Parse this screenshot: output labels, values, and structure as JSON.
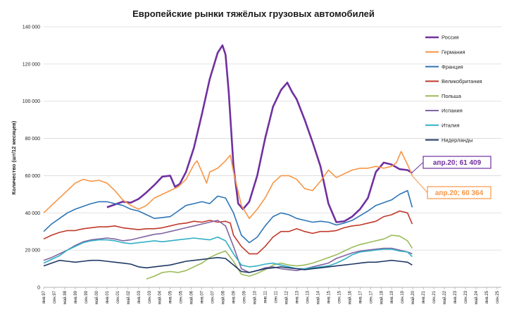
{
  "chart_data": {
    "type": "line",
    "title": "Европейские рынки тяжёлых грузовых автомобилей",
    "ylabel": "Количество  (шт/12 месяцев)",
    "ylim": [
      0,
      140000
    ],
    "y_ticks": [
      "0",
      "20 000",
      "40 000",
      "60 000",
      "80 000",
      "100 000",
      "120 000",
      "140 000"
    ],
    "x_ticks": [
      "янв.97",
      "сен.97",
      "май.98",
      "янв.99",
      "сен.99",
      "май.00",
      "янв.01",
      "сен.01",
      "май.02",
      "янв.03",
      "сен.03",
      "май.04",
      "янв.05",
      "сен.05",
      "май.06",
      "янв.07",
      "сен.07",
      "май.08",
      "янв.09",
      "сен.09",
      "май.10",
      "янв.11",
      "сен.11",
      "май.12",
      "янв.13",
      "сен.13",
      "май.14",
      "янв.15",
      "сен.15",
      "май.16",
      "янв.17",
      "сен.17",
      "май.18",
      "янв.19",
      "сен.19",
      "май.20",
      "янв.21",
      "сен.21",
      "май.22",
      "янв.23",
      "сен.23",
      "май.24",
      "янв.25",
      "сен.25"
    ],
    "legend_position": "right",
    "grid": "horizontal",
    "series": [
      {
        "name": "Россия",
        "color": "#7030a0",
        "x": [
          2001.0,
          2001.5,
          2002.0,
          2002.5,
          2003.0,
          2003.5,
          2004.0,
          2004.5,
          2005.0,
          2005.3,
          2005.6,
          2006.0,
          2006.5,
          2007.0,
          2007.5,
          2008.0,
          2008.3,
          2008.5,
          2008.7,
          2009.0,
          2009.3,
          2009.6,
          2010.0,
          2010.5,
          2011.0,
          2011.5,
          2012.0,
          2012.4,
          2012.7,
          2013.0,
          2013.5,
          2014.0,
          2014.5,
          2015.0,
          2015.5,
          2016.0,
          2016.5,
          2017.0,
          2017.5,
          2018.0,
          2018.5,
          2019.0,
          2019.5,
          2020.0,
          2020.3
        ],
        "y": [
          43000,
          44500,
          46000,
          45500,
          47500,
          51000,
          55000,
          59500,
          60000,
          54000,
          55500,
          62000,
          75000,
          93000,
          112000,
          126000,
          130000,
          125000,
          105000,
          65000,
          45000,
          42000,
          46000,
          60000,
          80000,
          97000,
          106000,
          110000,
          105000,
          101000,
          90000,
          78000,
          65000,
          45000,
          35000,
          35500,
          38000,
          42000,
          48000,
          62000,
          67000,
          66000,
          63500,
          63000,
          61409
        ]
      },
      {
        "name": "Германия",
        "color": "#f79646",
        "x": [
          1997.0,
          1997.5,
          1998.0,
          1998.5,
          1999.0,
          1999.5,
          2000.0,
          2000.5,
          2001.0,
          2001.5,
          2002.0,
          2002.5,
          2003.0,
          2003.5,
          2004.0,
          2004.5,
          2005.0,
          2005.5,
          2006.0,
          2006.5,
          2006.7,
          2007.0,
          2007.3,
          2007.5,
          2008.0,
          2008.5,
          2008.8,
          2009.0,
          2009.5,
          2010.0,
          2010.5,
          2011.0,
          2011.5,
          2012.0,
          2012.5,
          2013.0,
          2013.5,
          2014.0,
          2014.5,
          2015.0,
          2015.5,
          2016.0,
          2016.5,
          2017.0,
          2017.5,
          2018.0,
          2018.5,
          2019.0,
          2019.3,
          2019.6,
          2020.0,
          2020.3
        ],
        "y": [
          40000,
          44000,
          48000,
          52000,
          56000,
          58000,
          57000,
          57500,
          56000,
          52000,
          47000,
          44000,
          42000,
          44000,
          48000,
          50000,
          52000,
          54000,
          58000,
          66000,
          68000,
          62000,
          56000,
          62000,
          64000,
          68000,
          71000,
          62000,
          44000,
          37000,
          42000,
          48000,
          56000,
          60000,
          60000,
          58000,
          53000,
          52000,
          57000,
          63000,
          59000,
          61000,
          63000,
          64000,
          64000,
          65000,
          64000,
          65000,
          67000,
          73000,
          66000,
          60364
        ]
      },
      {
        "name": "Франция",
        "color": "#2e75b6",
        "x": [
          1997.0,
          1997.5,
          1998.0,
          1998.5,
          1999.0,
          1999.5,
          2000.0,
          2000.5,
          2001.0,
          2001.5,
          2002.0,
          2002.5,
          2003.0,
          2003.5,
          2004.0,
          2004.5,
          2005.0,
          2005.5,
          2006.0,
          2006.5,
          2007.0,
          2007.5,
          2008.0,
          2008.5,
          2009.0,
          2009.5,
          2010.0,
          2010.5,
          2011.0,
          2011.5,
          2012.0,
          2012.5,
          2013.0,
          2013.5,
          2014.0,
          2014.5,
          2015.0,
          2015.5,
          2016.0,
          2016.5,
          2017.0,
          2017.5,
          2018.0,
          2018.5,
          2019.0,
          2019.5,
          2020.0,
          2020.3
        ],
        "y": [
          30000,
          34000,
          37000,
          40000,
          42000,
          43500,
          45000,
          46000,
          46000,
          45000,
          44000,
          42000,
          41000,
          39000,
          37000,
          37500,
          38000,
          41000,
          44000,
          45000,
          46000,
          45000,
          49000,
          48000,
          40000,
          28000,
          24000,
          27000,
          33000,
          38000,
          40000,
          39000,
          37000,
          36000,
          35000,
          35500,
          35000,
          33500,
          34500,
          36000,
          38500,
          41000,
          44000,
          45500,
          47000,
          50000,
          52000,
          43000
        ]
      },
      {
        "name": "Великобритания",
        "color": "#c0392b",
        "x": [
          1997.0,
          1997.5,
          1998.0,
          1998.5,
          1999.0,
          1999.5,
          2000.0,
          2000.5,
          2001.0,
          2001.5,
          2002.0,
          2002.5,
          2003.0,
          2003.5,
          2004.0,
          2004.5,
          2005.0,
          2005.5,
          2006.0,
          2006.5,
          2007.0,
          2007.5,
          2008.0,
          2008.5,
          2008.8,
          2009.0,
          2009.5,
          2010.0,
          2010.5,
          2011.0,
          2011.5,
          2012.0,
          2012.5,
          2013.0,
          2013.5,
          2014.0,
          2014.5,
          2015.0,
          2015.5,
          2016.0,
          2016.5,
          2017.0,
          2017.5,
          2018.0,
          2018.5,
          2019.0,
          2019.5,
          2020.0,
          2020.3
        ],
        "y": [
          26000,
          28000,
          29500,
          30500,
          30500,
          31500,
          32000,
          32500,
          32500,
          33000,
          32000,
          31500,
          31000,
          31500,
          31500,
          32000,
          33000,
          34000,
          34500,
          35500,
          35000,
          36000,
          35000,
          35500,
          34500,
          28000,
          22000,
          18000,
          18000,
          22000,
          27000,
          30000,
          30000,
          31500,
          30000,
          29000,
          30000,
          30000,
          30500,
          32000,
          33000,
          33500,
          34500,
          35500,
          38000,
          39000,
          41000,
          40000,
          34000
        ]
      },
      {
        "name": "Польша",
        "color": "#9bbb59",
        "x": [
          2003.5,
          2004.0,
          2004.5,
          2005.0,
          2005.5,
          2006.0,
          2006.5,
          2007.0,
          2007.5,
          2008.0,
          2008.5,
          2009.0,
          2009.5,
          2010.0,
          2010.5,
          2011.0,
          2011.5,
          2012.0,
          2012.5,
          2013.0,
          2013.5,
          2014.0,
          2014.5,
          2015.0,
          2015.5,
          2016.0,
          2016.5,
          2017.0,
          2017.5,
          2018.0,
          2018.5,
          2019.0,
          2019.5,
          2020.0,
          2020.3
        ],
        "y": [
          4500,
          6000,
          8000,
          8500,
          8000,
          9000,
          11000,
          13000,
          16000,
          18000,
          19500,
          14000,
          7000,
          6000,
          7500,
          9500,
          12000,
          13000,
          12000,
          11500,
          12000,
          13000,
          14500,
          16000,
          17500,
          19500,
          21500,
          23000,
          24000,
          25000,
          26000,
          28000,
          27500,
          25000,
          21000
        ]
      },
      {
        "name": "Испания",
        "color": "#8064a2",
        "x": [
          1997.0,
          1997.5,
          1998.0,
          1998.5,
          1999.0,
          1999.5,
          2000.0,
          2000.5,
          2001.0,
          2001.5,
          2002.0,
          2002.5,
          2003.0,
          2003.5,
          2004.0,
          2004.5,
          2005.0,
          2005.5,
          2006.0,
          2006.5,
          2007.0,
          2007.5,
          2008.0,
          2008.5,
          2009.0,
          2009.5,
          2010.0,
          2010.5,
          2011.0,
          2011.5,
          2012.0,
          2012.5,
          2013.0,
          2013.5,
          2014.0,
          2014.5,
          2015.0,
          2015.5,
          2016.0,
          2016.5,
          2017.0,
          2017.5,
          2018.0,
          2018.5,
          2019.0,
          2019.5,
          2020.0,
          2020.3
        ],
        "y": [
          14500,
          16000,
          18000,
          20000,
          22500,
          24500,
          25500,
          26000,
          26500,
          26000,
          25000,
          25500,
          26500,
          27500,
          28500,
          29000,
          30000,
          31000,
          32000,
          33000,
          34000,
          35000,
          36000,
          33000,
          22000,
          10000,
          8000,
          9000,
          10500,
          11000,
          10000,
          9500,
          9000,
          10000,
          11000,
          12000,
          13000,
          15500,
          17000,
          18500,
          19500,
          20000,
          20500,
          21000,
          21000,
          20000,
          19000,
          18000
        ]
      },
      {
        "name": "Италия",
        "color": "#31b0c6",
        "x": [
          1997.0,
          1997.5,
          1998.0,
          1998.5,
          1999.0,
          1999.5,
          2000.0,
          2000.5,
          2001.0,
          2001.5,
          2002.0,
          2002.5,
          2003.0,
          2003.5,
          2004.0,
          2004.5,
          2005.0,
          2005.5,
          2006.0,
          2006.5,
          2007.0,
          2007.5,
          2008.0,
          2008.5,
          2009.0,
          2009.5,
          2010.0,
          2010.5,
          2011.0,
          2011.5,
          2012.0,
          2012.5,
          2013.0,
          2013.5,
          2014.0,
          2014.5,
          2015.0,
          2015.5,
          2016.0,
          2016.5,
          2017.0,
          2017.5,
          2018.0,
          2018.5,
          2019.0,
          2019.5,
          2020.0,
          2020.3
        ],
        "y": [
          13000,
          15000,
          17000,
          20000,
          22000,
          24000,
          25000,
          25500,
          25500,
          25000,
          24000,
          23500,
          24000,
          24500,
          25000,
          24500,
          25000,
          25500,
          26000,
          26500,
          26000,
          25500,
          27000,
          25000,
          18000,
          12000,
          11000,
          11500,
          12500,
          13000,
          12000,
          11000,
          10000,
          10000,
          10500,
          11000,
          11500,
          13000,
          15000,
          17500,
          19000,
          19500,
          20000,
          20500,
          20500,
          19500,
          19000,
          16500
        ]
      },
      {
        "name": "Нидерланды",
        "color": "#1f3864",
        "x": [
          1997.0,
          1997.5,
          1998.0,
          1998.5,
          1999.0,
          1999.5,
          2000.0,
          2000.5,
          2001.0,
          2001.5,
          2002.0,
          2002.5,
          2003.0,
          2003.5,
          2004.0,
          2004.5,
          2005.0,
          2005.5,
          2006.0,
          2006.5,
          2007.0,
          2007.5,
          2008.0,
          2008.5,
          2009.0,
          2009.5,
          2010.0,
          2010.5,
          2011.0,
          2011.5,
          2012.0,
          2012.5,
          2013.0,
          2013.5,
          2014.0,
          2014.5,
          2015.0,
          2015.5,
          2016.0,
          2016.5,
          2017.0,
          2017.5,
          2018.0,
          2018.5,
          2019.0,
          2019.5,
          2020.0,
          2020.3
        ],
        "y": [
          11500,
          13000,
          14500,
          14000,
          13500,
          14000,
          14500,
          14500,
          14000,
          13500,
          13000,
          12500,
          11000,
          10500,
          11000,
          11500,
          12000,
          13000,
          14000,
          14500,
          15000,
          15500,
          16000,
          15500,
          12000,
          8500,
          8000,
          9000,
          10000,
          10500,
          11000,
          10500,
          10000,
          9500,
          10000,
          10500,
          11000,
          11500,
          12000,
          12500,
          13000,
          13500,
          13500,
          14000,
          14500,
          14000,
          13500,
          12000
        ]
      }
    ],
    "annotations": [
      {
        "text": "апр.20;  61 409",
        "series": "Россия",
        "x": 2020.25,
        "y": 61409,
        "color": "#7030a0"
      },
      {
        "text": "апр.20;  60 364",
        "series": "Германия",
        "x": 2020.25,
        "y": 60364,
        "color": "#f79646"
      }
    ]
  }
}
